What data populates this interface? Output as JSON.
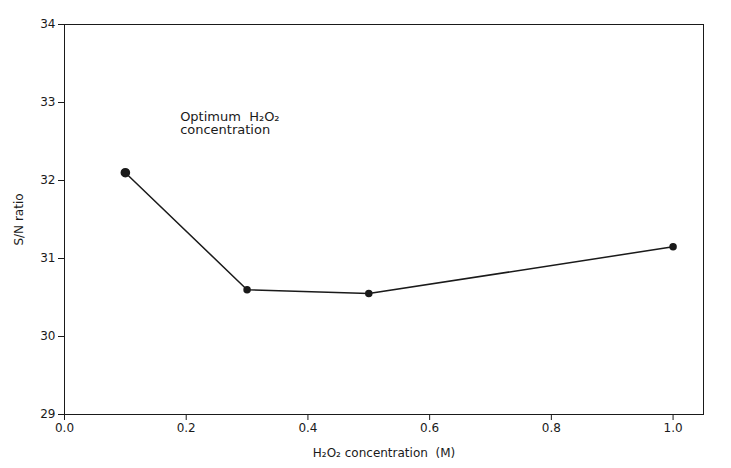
{
  "chart_data": {
    "type": "line",
    "x": [
      0.1,
      0.3,
      0.5,
      1.0
    ],
    "values": [
      32.1,
      30.6,
      30.55,
      31.15
    ],
    "color": "#1a1a1a",
    "marker": "circle",
    "xlabel": "H₂O₂ concentration  (M)",
    "ylabel": "S/N ratio",
    "xlim": [
      0.0,
      1.05
    ],
    "ylim": [
      29.0,
      34.0
    ],
    "xticks": [
      {
        "value": 0,
        "label": "0.0"
      },
      0.2,
      0.4,
      0.6,
      0.8,
      {
        "value": 1,
        "label": "1.0"
      }
    ],
    "yticks": [
      29,
      30,
      31,
      32,
      33,
      34
    ],
    "grid": false,
    "annotations": [
      {
        "text": "Optimum  H₂O₂\nconcentration",
        "x": 0.19,
        "y": 32.6
      }
    ]
  }
}
